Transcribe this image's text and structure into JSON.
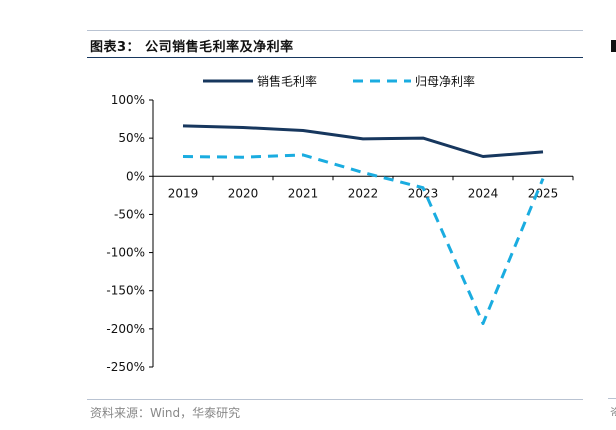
{
  "page": {
    "title": "图表3： 公司销售毛利率及净利率",
    "source": "资料来源：Wind，华泰研究",
    "edge_char": "资"
  },
  "chart_data": {
    "type": "line",
    "title": "",
    "xlabel": "",
    "ylabel": "",
    "categories": [
      "2019",
      "2020",
      "2021",
      "2022",
      "2023",
      "2024",
      "2025"
    ],
    "yticks": [
      "100%",
      "50%",
      "0%",
      "-50%",
      "-100%",
      "-150%",
      "-200%",
      "-250%"
    ],
    "ylim": [
      -250,
      100
    ],
    "grid": false,
    "legend_position": "top",
    "series": [
      {
        "name": "销售毛利率",
        "values": [
          66,
          64,
          60,
          49,
          50,
          26,
          32
        ],
        "color": "#17375e",
        "style": "solid"
      },
      {
        "name": "归母净利率",
        "values": [
          26,
          25,
          28,
          5,
          -15,
          -193,
          -3
        ],
        "color": "#1aace0",
        "style": "dashed"
      }
    ]
  }
}
